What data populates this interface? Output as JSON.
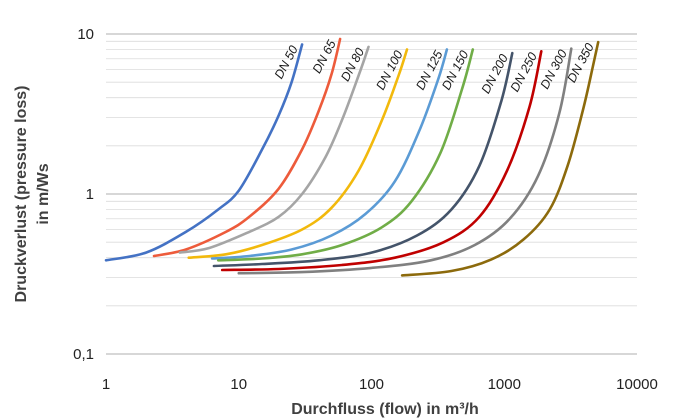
{
  "chart_data": {
    "type": "line",
    "xlabel": "Durchfluss (flow) in m³/h",
    "ylabel_line1": "Druckverlust (pressure loss)",
    "ylabel_line2": "in m/Ws",
    "x_scale": "log",
    "y_scale": "log",
    "xlim": [
      1,
      10000
    ],
    "ylim": [
      0.1,
      10
    ],
    "x_ticks": [
      {
        "value": 1,
        "label": "1"
      },
      {
        "value": 10,
        "label": "10"
      },
      {
        "value": 100,
        "label": "100"
      },
      {
        "value": 1000,
        "label": "1000"
      },
      {
        "value": 10000,
        "label": "10000"
      }
    ],
    "y_ticks": [
      {
        "value": 0.1,
        "label": "0,1"
      },
      {
        "value": 1,
        "label": "1"
      },
      {
        "value": 10,
        "label": "10"
      }
    ],
    "grid": true,
    "legend": "none",
    "series": [
      {
        "name": "DN 50",
        "color": "#4472C4",
        "points": [
          [
            1,
            0.385
          ],
          [
            2,
            0.43
          ],
          [
            4,
            0.58
          ],
          [
            7,
            0.8
          ],
          [
            10,
            1.05
          ],
          [
            15,
            1.9
          ],
          [
            20,
            3.1
          ],
          [
            25,
            5.0
          ],
          [
            30,
            8.6
          ]
        ]
      },
      {
        "name": "DN 65",
        "color": "#ED5B3B",
        "points": [
          [
            2.3,
            0.41
          ],
          [
            4,
            0.45
          ],
          [
            8,
            0.58
          ],
          [
            12,
            0.72
          ],
          [
            20,
            1.08
          ],
          [
            30,
            1.9
          ],
          [
            40,
            3.3
          ],
          [
            50,
            5.6
          ],
          [
            58,
            9.3
          ]
        ]
      },
      {
        "name": "DN 80",
        "color": "#A5A5A5",
        "points": [
          [
            3.6,
            0.43
          ],
          [
            6,
            0.46
          ],
          [
            12,
            0.58
          ],
          [
            20,
            0.72
          ],
          [
            30,
            1.0
          ],
          [
            45,
            1.7
          ],
          [
            60,
            2.9
          ],
          [
            80,
            5.5
          ],
          [
            95,
            8.3
          ]
        ]
      },
      {
        "name": "DN 100",
        "color": "#F2B90C",
        "points": [
          [
            4.2,
            0.4
          ],
          [
            8,
            0.42
          ],
          [
            15,
            0.48
          ],
          [
            30,
            0.6
          ],
          [
            50,
            0.82
          ],
          [
            80,
            1.4
          ],
          [
            120,
            2.9
          ],
          [
            160,
            5.5
          ],
          [
            185,
            8.0
          ]
        ]
      },
      {
        "name": "DN 125",
        "color": "#5B9BD5",
        "points": [
          [
            6.3,
            0.395
          ],
          [
            12,
            0.41
          ],
          [
            25,
            0.45
          ],
          [
            50,
            0.55
          ],
          [
            90,
            0.75
          ],
          [
            150,
            1.2
          ],
          [
            230,
            2.5
          ],
          [
            320,
            5.3
          ],
          [
            370,
            8.0
          ]
        ]
      },
      {
        "name": "DN 150",
        "color": "#70AD47",
        "points": [
          [
            7,
            0.385
          ],
          [
            15,
            0.395
          ],
          [
            30,
            0.42
          ],
          [
            60,
            0.48
          ],
          [
            120,
            0.62
          ],
          [
            200,
            0.9
          ],
          [
            330,
            1.8
          ],
          [
            480,
            4.5
          ],
          [
            580,
            8.0
          ]
        ]
      },
      {
        "name": "DN 200",
        "color": "#44546A",
        "points": [
          [
            6.5,
            0.355
          ],
          [
            15,
            0.365
          ],
          [
            40,
            0.385
          ],
          [
            100,
            0.43
          ],
          [
            220,
            0.55
          ],
          [
            400,
            0.8
          ],
          [
            650,
            1.5
          ],
          [
            950,
            3.8
          ],
          [
            1150,
            7.6
          ]
        ]
      },
      {
        "name": "DN 250",
        "color": "#C00000",
        "points": [
          [
            7.5,
            0.335
          ],
          [
            20,
            0.34
          ],
          [
            60,
            0.36
          ],
          [
            150,
            0.4
          ],
          [
            350,
            0.5
          ],
          [
            650,
            0.72
          ],
          [
            1050,
            1.4
          ],
          [
            1550,
            3.5
          ],
          [
            1900,
            7.8
          ]
        ]
      },
      {
        "name": "DN 300",
        "color": "#808080",
        "points": [
          [
            10,
            0.32
          ],
          [
            30,
            0.325
          ],
          [
            100,
            0.345
          ],
          [
            280,
            0.385
          ],
          [
            600,
            0.48
          ],
          [
            1100,
            0.7
          ],
          [
            1800,
            1.3
          ],
          [
            2600,
            3.2
          ],
          [
            3200,
            8.1
          ]
        ]
      },
      {
        "name": "DN 350",
        "color": "#8C6A0C",
        "points": [
          [
            170,
            0.31
          ],
          [
            400,
            0.33
          ],
          [
            800,
            0.39
          ],
          [
            1400,
            0.52
          ],
          [
            2200,
            0.8
          ],
          [
            3000,
            1.5
          ],
          [
            3900,
            3.3
          ],
          [
            4600,
            6.0
          ],
          [
            5100,
            8.9
          ]
        ]
      }
    ]
  }
}
